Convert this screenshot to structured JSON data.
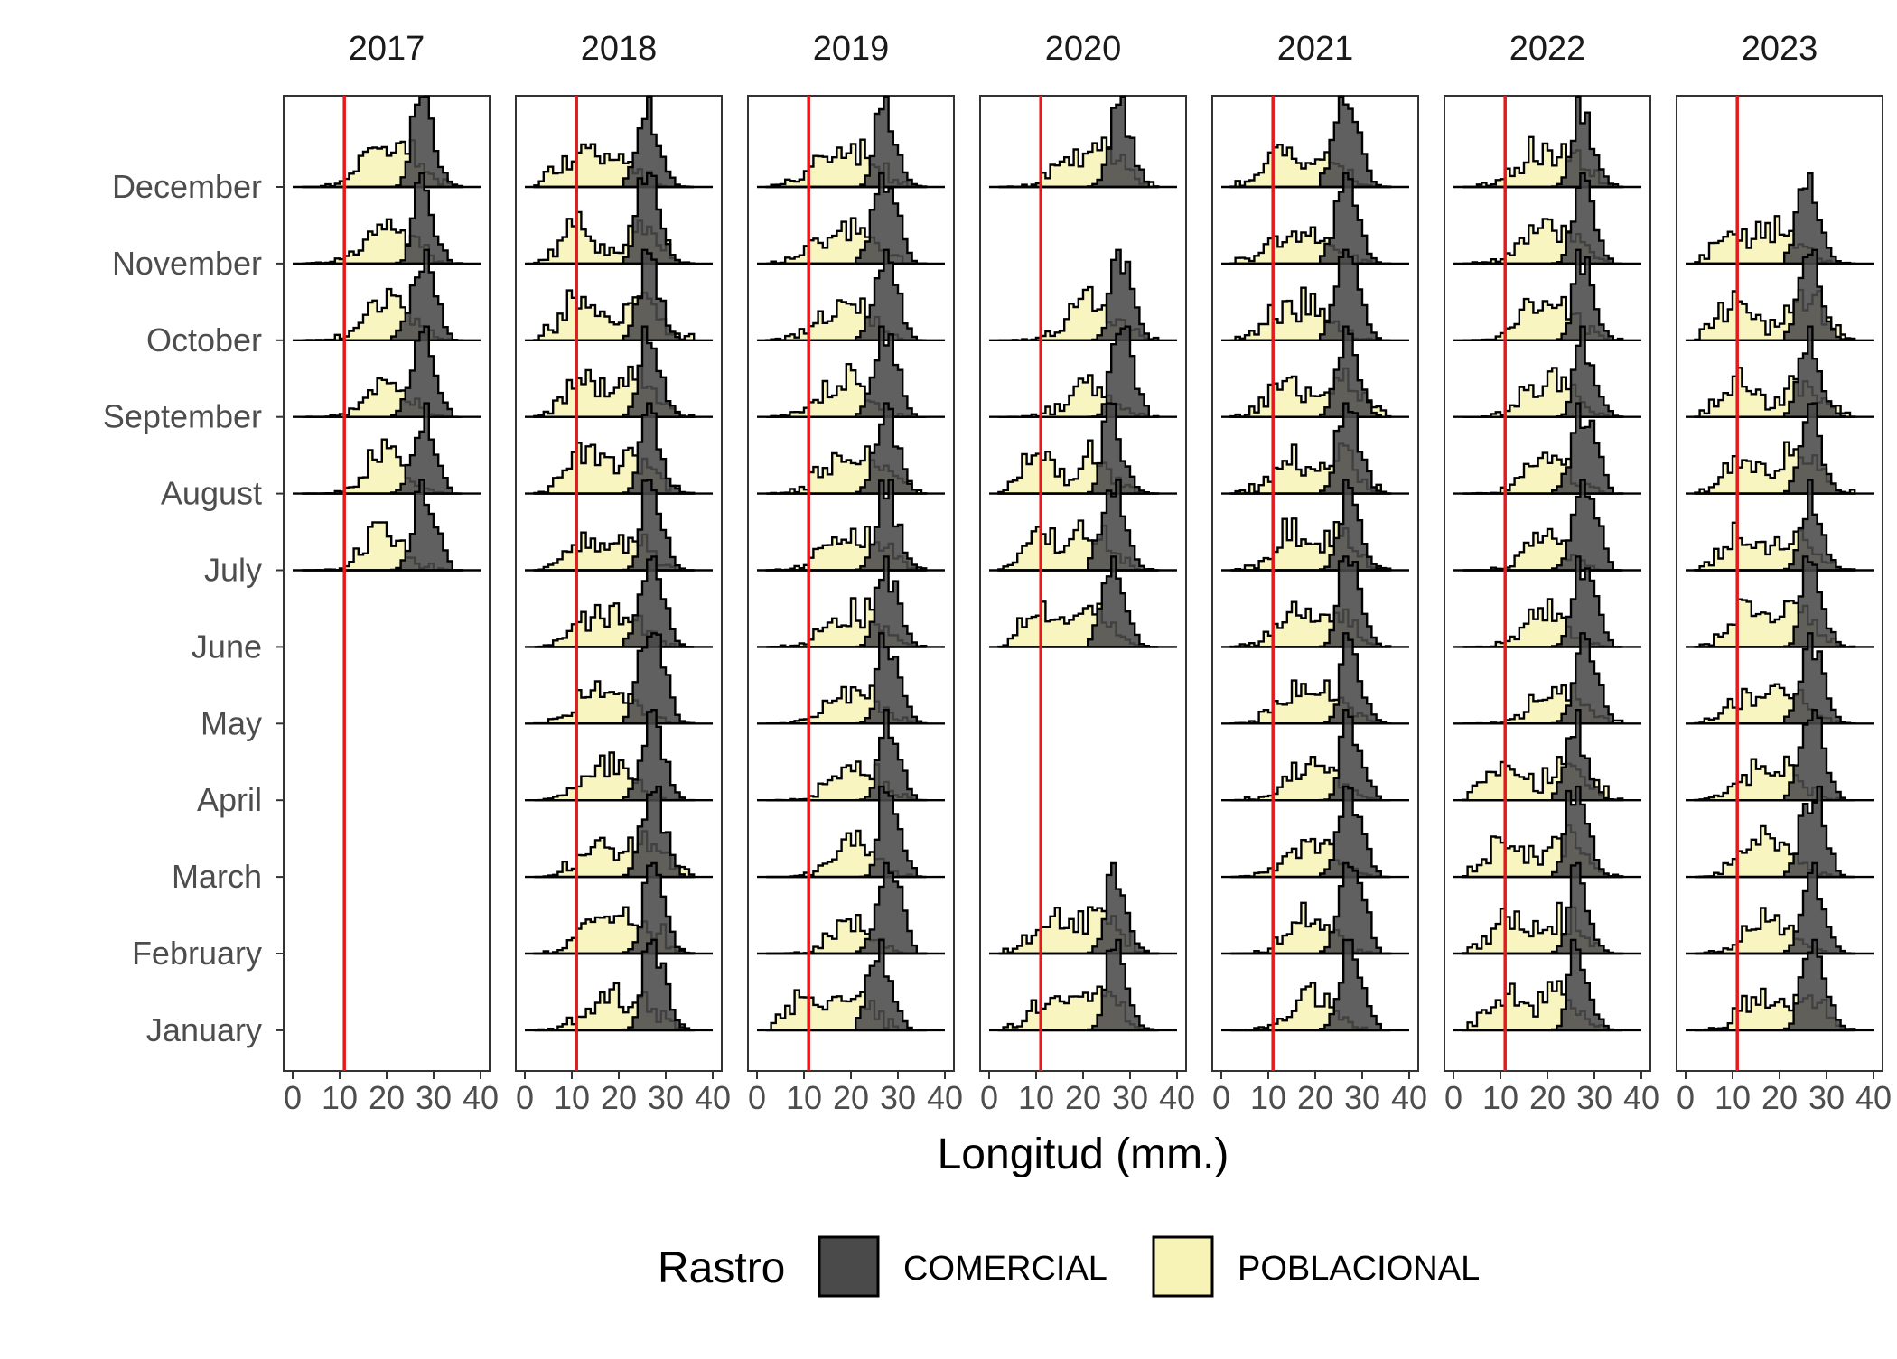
{
  "chart_data": {
    "type": "area",
    "subtype": "faceted ridgeline histogram",
    "xlabel": "Longitud (mm.)",
    "ylabel": "",
    "xlim": [
      0,
      40
    ],
    "x_ticks": [
      0,
      10,
      20,
      30,
      40
    ],
    "reference_line": {
      "x": 11,
      "color": "#e41a1c"
    },
    "panels": [
      "2017",
      "2018",
      "2019",
      "2020",
      "2021",
      "2022",
      "2023"
    ],
    "months": [
      "December",
      "November",
      "October",
      "September",
      "August",
      "July",
      "June",
      "May",
      "April",
      "March",
      "February",
      "January"
    ],
    "series": [
      {
        "name": "COMERCIAL",
        "color": "#4a4a4a"
      },
      {
        "name": "POBLACIONAL",
        "color": "#f7f3b6"
      }
    ],
    "legend": {
      "title": "Rastro",
      "position": "bottom"
    },
    "grid": false,
    "presence": {
      "2017": [
        "December",
        "November",
        "October",
        "September",
        "August",
        "July"
      ],
      "2018": [
        "December",
        "November",
        "October",
        "September",
        "August",
        "July",
        "June",
        "May",
        "April",
        "March",
        "February",
        "January"
      ],
      "2019": [
        "December",
        "November",
        "October",
        "September",
        "August",
        "July",
        "June",
        "May",
        "April",
        "March",
        "February",
        "January"
      ],
      "2020": [
        "December",
        "October",
        "September",
        "August",
        "July",
        "June",
        "February",
        "January"
      ],
      "2021": [
        "December",
        "November",
        "October",
        "September",
        "August",
        "July",
        "June",
        "May",
        "April",
        "March",
        "February",
        "January"
      ],
      "2022": [
        "December",
        "November",
        "October",
        "September",
        "August",
        "July",
        "June",
        "May",
        "April",
        "March",
        "February",
        "January"
      ],
      "2023": [
        "November",
        "October",
        "September",
        "August",
        "July",
        "June",
        "May",
        "April",
        "March",
        "February",
        "January"
      ]
    },
    "distribution_summary": {
      "COMERCIAL": {
        "peak_length_mm": 26,
        "range_mm": [
          22,
          34
        ]
      },
      "POBLACIONAL": {
        "mode_range_mm": [
          14,
          26
        ],
        "range_mm": [
          2,
          36
        ]
      }
    }
  }
}
